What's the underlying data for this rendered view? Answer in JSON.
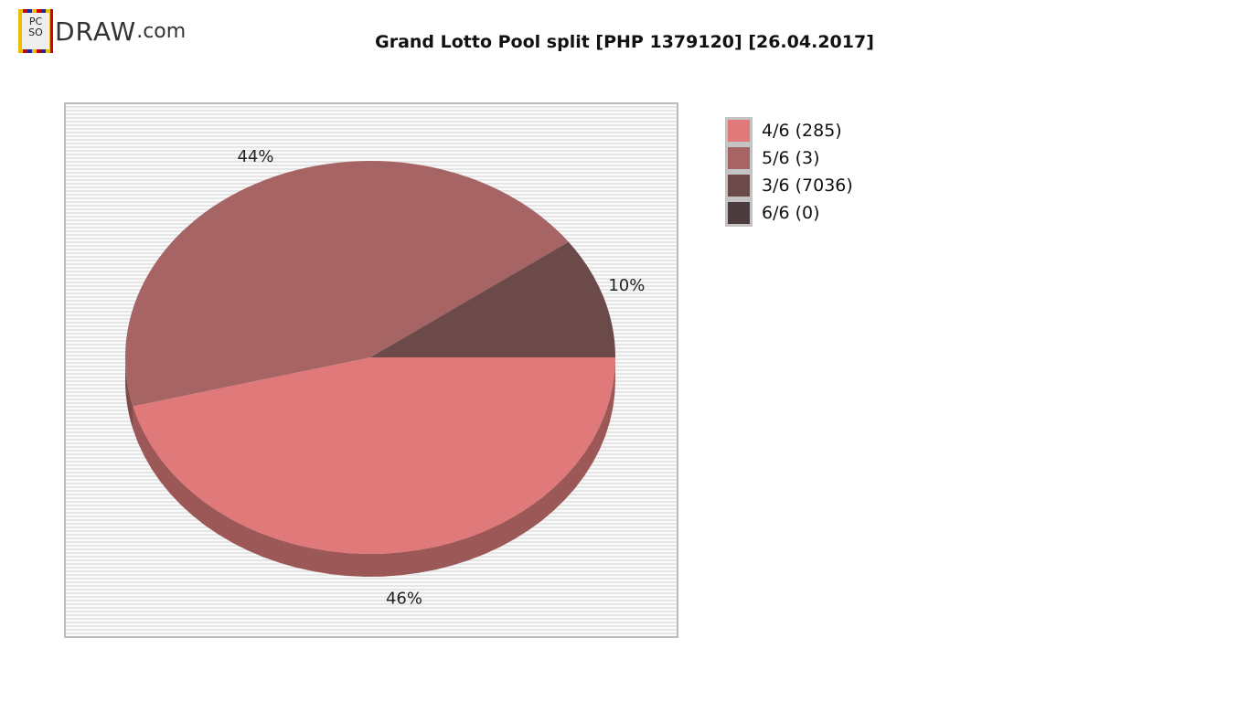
{
  "logo": {
    "text": "DRAW",
    "suffix": ".com",
    "seal": "PCSO"
  },
  "chart_data": {
    "type": "pie",
    "title": "Grand Lotto Pool split [PHP 1379120] [26.04.2017]",
    "slices": [
      {
        "name": "4/6 (285)",
        "percent": 46,
        "label": "46%",
        "color": "#e07a7a",
        "side": "#9c5757"
      },
      {
        "name": "5/6 (3)",
        "percent": 44,
        "label": "44%",
        "color": "#a66464",
        "side": "#7e4a4a"
      },
      {
        "name": "3/6 (7036)",
        "percent": 10,
        "label": "10%",
        "color": "#6c4a4a",
        "side": "#4d3434"
      },
      {
        "name": "6/6 (0)",
        "percent": 0,
        "label": "",
        "color": "#4d3c3e",
        "side": "#3a2d2e"
      }
    ],
    "legend_position": "right"
  }
}
